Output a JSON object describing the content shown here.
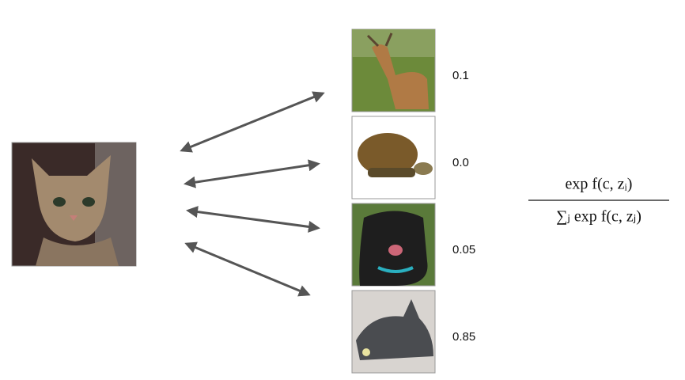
{
  "candidates": [
    {
      "label": "deer",
      "score": "0.1"
    },
    {
      "label": "turtle",
      "score": "0.0"
    },
    {
      "label": "dog",
      "score": "0.05"
    },
    {
      "label": "cat",
      "score": "0.85"
    }
  ],
  "formula": {
    "numerator": "exp f(c, zᵢ)",
    "denominator": "∑ⱼ exp f(c, zⱼ)"
  }
}
